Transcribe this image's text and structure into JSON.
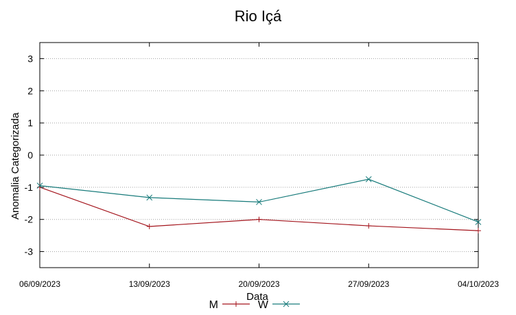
{
  "chart_data": {
    "type": "line",
    "title": "Rio Içá",
    "xlabel": "Data",
    "ylabel": "Anomalia Categorizada",
    "categories": [
      "06/09/2023",
      "13/09/2023",
      "20/09/2023",
      "27/09/2023",
      "04/10/2023"
    ],
    "ylim": [
      -3.5,
      3.5
    ],
    "yticks": [
      3,
      2,
      1,
      0,
      -1,
      -2,
      -3
    ],
    "grid": true,
    "legend_position": "bottom",
    "series": [
      {
        "name": "M",
        "color": "#a3131b",
        "marker": "plus",
        "values": [
          -1.0,
          -2.22,
          -2.0,
          -2.2,
          -2.35
        ]
      },
      {
        "name": "W",
        "color": "#167a7a",
        "marker": "cross",
        "values": [
          -0.95,
          -1.32,
          -1.46,
          -0.75,
          -2.08
        ]
      }
    ]
  }
}
